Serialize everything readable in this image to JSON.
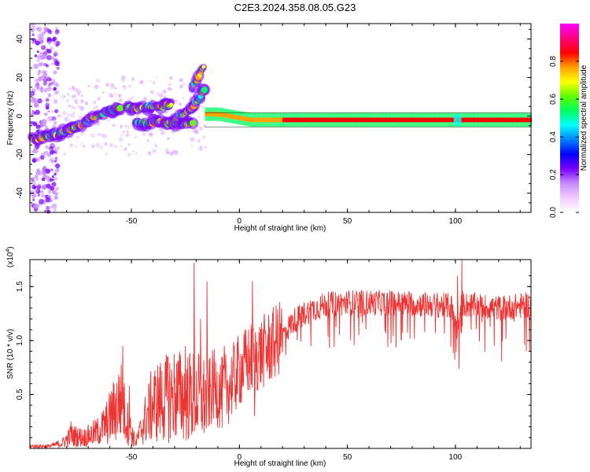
{
  "figure_title": "C2E3.2024.358.08.05.G23",
  "chart_data": [
    {
      "type": "heatmap",
      "xlabel": "Height of straight line (km)",
      "ylabel": "Frequency (Hz)",
      "xlim": [
        -97,
        135
      ],
      "ylim": [
        -50,
        48
      ],
      "x_ticks": [
        -50,
        0,
        50,
        100
      ],
      "y_ticks": [
        -40,
        -20,
        0,
        20,
        40
      ],
      "colorbar": {
        "label": "Normalized spectral amplitude",
        "range": [
          0,
          1
        ],
        "ticks": [
          0.0,
          0.2,
          0.4,
          0.6,
          0.8
        ],
        "tick_labels": [
          "0.0",
          "0.2",
          "0.4",
          "0.6",
          "0.8"
        ],
        "colors": [
          "#ffffff",
          "#f3ccff",
          "#c88cff",
          "#7a00ff",
          "#0000ff",
          "#0080ff",
          "#00ffff",
          "#00ff60",
          "#60ff00",
          "#ffff00",
          "#ffa000",
          "#ff0000",
          "#ff0080",
          "#ff00ff"
        ]
      },
      "ridges": [
        {
          "x": [
            -96,
            -88,
            -83,
            -78,
            -73,
            -68,
            -63,
            -58,
            -55
          ],
          "y": [
            -12,
            -10,
            -9,
            -7,
            -4,
            -1,
            1,
            3,
            4
          ]
        },
        {
          "x": [
            -48,
            -44,
            -40,
            -36,
            -32,
            -28,
            -24,
            -21
          ],
          "y": [
            -4,
            -4,
            -3,
            -3,
            -4,
            -4,
            -4,
            -4
          ]
        },
        {
          "x": [
            -30,
            -26,
            -23,
            -20,
            -18,
            -16
          ],
          "y": [
            -2,
            1,
            4,
            7,
            10,
            14
          ]
        },
        {
          "x": [
            -22,
            -20,
            -18,
            -16
          ],
          "y": [
            14,
            18,
            22,
            27
          ]
        },
        {
          "x": [
            -52,
            -46,
            -41,
            -36,
            -31
          ],
          "y": [
            4,
            4,
            5,
            5,
            6
          ]
        },
        {
          "x": [
            -16,
            -10,
            -5,
            0,
            5,
            15,
            30,
            60,
            90,
            99,
            101,
            110,
            135
          ],
          "y": [
            1,
            1,
            0,
            -1,
            -2,
            -2,
            -2,
            -2,
            -2,
            -2,
            -2,
            -2,
            -2
          ]
        }
      ]
    },
    {
      "type": "line",
      "xlabel": "Height of straight line (km)",
      "ylabel": "SNR (10 * v/v)",
      "multiplier_label": "(x10",
      "multiplier_exp": "4",
      "xlim": [
        -97,
        135
      ],
      "ylim": [
        0,
        1.75
      ],
      "x_ticks": [
        -50,
        0,
        50,
        100
      ],
      "y_ticks": [
        0.5,
        1.0,
        1.5
      ],
      "y_tick_labels": [
        "0.5",
        "1.0",
        "1.5"
      ],
      "line_color": "#ee3333",
      "envelope_x": [
        -97,
        -88,
        -82,
        -78,
        -72,
        -66,
        -62,
        -58,
        -55,
        -52,
        -48,
        -44,
        -40,
        -35,
        -30,
        -25,
        -20,
        -15,
        -12,
        -8,
        -4,
        0,
        5,
        10,
        15,
        20,
        25,
        30,
        35,
        40,
        50,
        60,
        70,
        80,
        90,
        98,
        101,
        103,
        105,
        110,
        120,
        135
      ],
      "envelope_y": [
        0.02,
        0.02,
        0.05,
        0.12,
        0.1,
        0.15,
        0.22,
        0.35,
        0.45,
        0.25,
        0.05,
        0.25,
        0.42,
        0.45,
        0.5,
        0.48,
        0.48,
        0.45,
        0.58,
        0.5,
        0.6,
        0.72,
        0.82,
        0.88,
        0.95,
        1.05,
        1.18,
        1.25,
        1.3,
        1.33,
        1.35,
        1.35,
        1.35,
        1.34,
        1.33,
        1.32,
        1.1,
        1.35,
        1.33,
        1.32,
        1.3,
        1.33
      ],
      "spikes": [
        {
          "x": -78,
          "y": 0.25
        },
        {
          "x": -54,
          "y": 0.95
        },
        {
          "x": -51,
          "y": 0.58
        },
        {
          "x": -39,
          "y": 0.58
        },
        {
          "x": -33,
          "y": 0.85
        },
        {
          "x": -25,
          "y": 0.95
        },
        {
          "x": -21,
          "y": 1.72
        },
        {
          "x": -18,
          "y": 1.2
        },
        {
          "x": -15,
          "y": 1.55
        },
        {
          "x": -7,
          "y": 0.95
        },
        {
          "x": 6,
          "y": 1.55
        },
        {
          "x": 7,
          "y": 0.3
        },
        {
          "x": 12,
          "y": 1.1
        },
        {
          "x": 99,
          "y": 0.88
        },
        {
          "x": 101,
          "y": 1.6
        },
        {
          "x": 103,
          "y": 1.75
        },
        {
          "x": 118,
          "y": 0.95
        }
      ]
    }
  ]
}
